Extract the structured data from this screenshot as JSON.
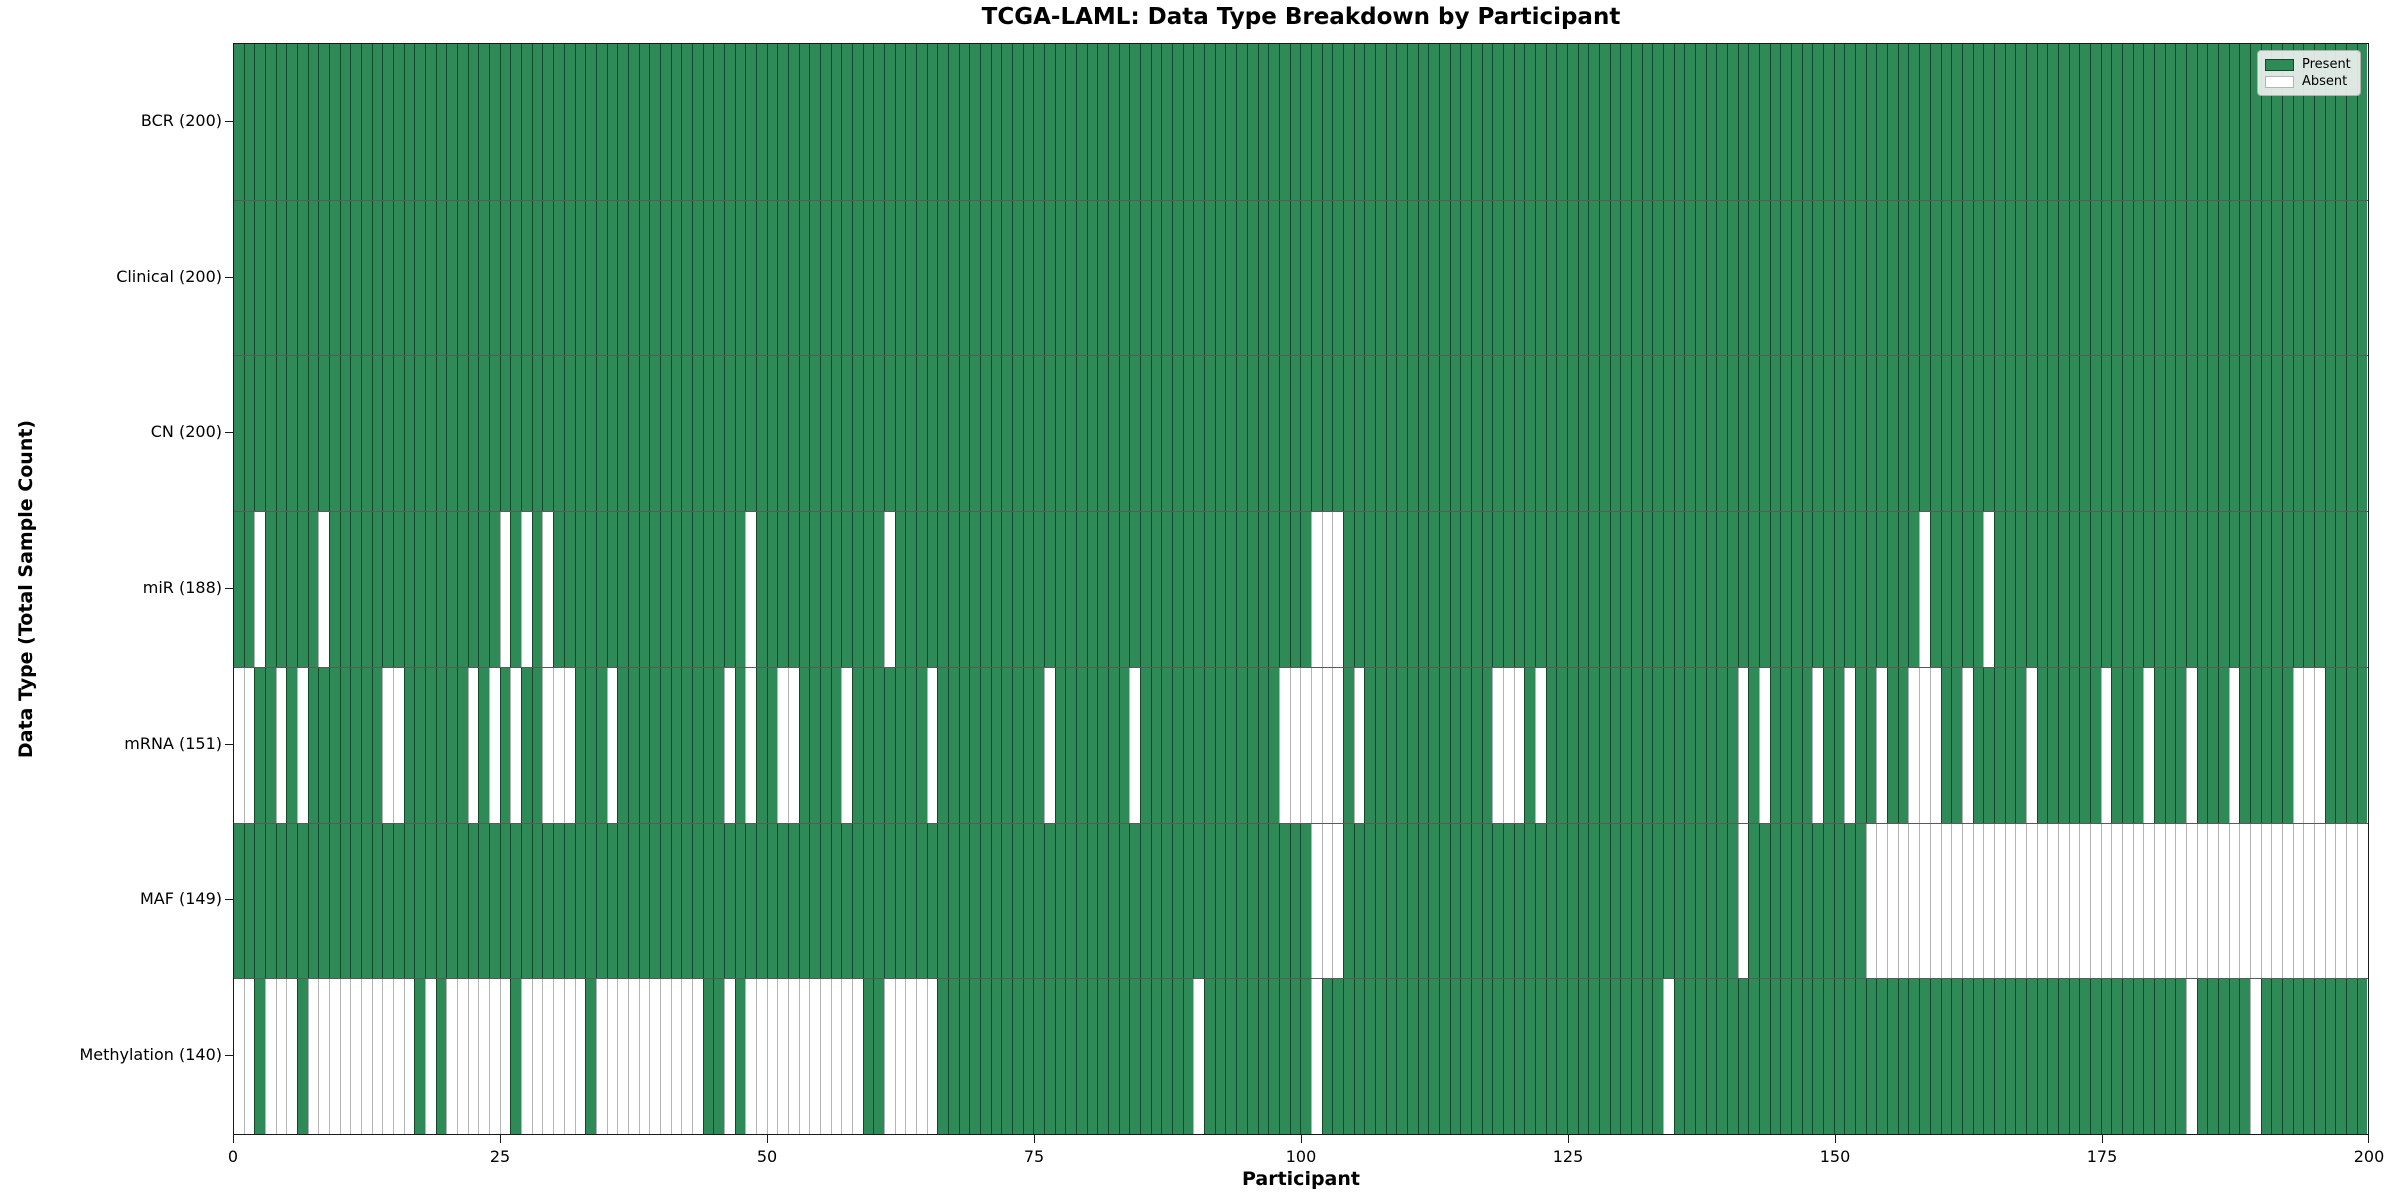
{
  "title": "TCGA-LAML: Data Type Breakdown by Participant",
  "xlabel": "Participant",
  "ylabel": "Data Type (Total Sample Count)",
  "legend": {
    "present_label": "Present",
    "absent_label": "Absent"
  },
  "colors": {
    "present": "#2E8B57",
    "absent": "#FFFFFF",
    "present_edge": "rgba(12,44,26,0.72)",
    "absent_edge": "#B4B4B4",
    "spine": "#1A1A1A",
    "legend_bg": "rgba(242,242,242,0.9)"
  },
  "chart_data": {
    "type": "heatmap",
    "title": "TCGA-LAML: Data Type Breakdown by Participant",
    "xlabel": "Participant",
    "ylabel": "Data Type (Total Sample Count)",
    "xlim": [
      0,
      200
    ],
    "n_participants": 200,
    "x_ticks": [
      0,
      25,
      50,
      75,
      100,
      125,
      150,
      175,
      200
    ],
    "grid": false,
    "legend_position": "upper right",
    "legend_entries": [
      "Present",
      "Absent"
    ],
    "rows": [
      {
        "name": "BCR",
        "label": "BCR (200)",
        "present_count": 200,
        "absent_participants": []
      },
      {
        "name": "Clinical",
        "label": "Clinical (200)",
        "present_count": 200,
        "absent_participants": []
      },
      {
        "name": "CN",
        "label": "CN (200)",
        "present_count": 200,
        "absent_participants": []
      },
      {
        "name": "miR",
        "label": "miR (188)",
        "present_count": 188,
        "absent_participants": [
          2,
          8,
          25,
          27,
          29,
          48,
          61,
          101,
          102,
          103,
          158,
          164
        ]
      },
      {
        "name": "mRNA",
        "label": "mRNA (151)",
        "present_count": 151,
        "absent_participants": [
          0,
          1,
          4,
          6,
          14,
          15,
          22,
          24,
          26,
          29,
          30,
          31,
          35,
          46,
          48,
          51,
          52,
          57,
          65,
          76,
          84,
          98,
          99,
          100,
          101,
          102,
          103,
          105,
          118,
          119,
          120,
          122,
          141,
          143,
          148,
          151,
          154,
          157,
          158,
          159,
          162,
          168,
          175,
          179,
          183,
          187,
          193,
          194,
          195
        ]
      },
      {
        "name": "MAF",
        "label": "MAF (149)",
        "present_count": 149,
        "absent_participants": [
          101,
          102,
          103,
          141,
          153,
          154,
          155,
          156,
          157,
          158,
          159,
          160,
          161,
          162,
          163,
          164,
          165,
          166,
          167,
          168,
          169,
          170,
          171,
          172,
          173,
          174,
          175,
          176,
          177,
          178,
          179,
          180,
          181,
          182,
          183,
          184,
          185,
          186,
          187,
          188,
          189,
          190,
          191,
          192,
          193,
          194,
          195,
          196,
          197,
          198,
          199
        ]
      },
      {
        "name": "Methylation",
        "label": "Methylation (140)",
        "present_count": 140,
        "absent_participants": [
          0,
          1,
          3,
          4,
          5,
          7,
          8,
          9,
          10,
          11,
          12,
          13,
          14,
          15,
          16,
          18,
          20,
          21,
          22,
          23,
          24,
          25,
          27,
          28,
          29,
          30,
          31,
          32,
          34,
          35,
          36,
          37,
          38,
          39,
          40,
          41,
          42,
          43,
          46,
          48,
          49,
          50,
          51,
          52,
          53,
          54,
          55,
          56,
          57,
          58,
          61,
          62,
          63,
          64,
          65,
          90,
          101,
          134,
          183,
          189
        ]
      }
    ]
  }
}
